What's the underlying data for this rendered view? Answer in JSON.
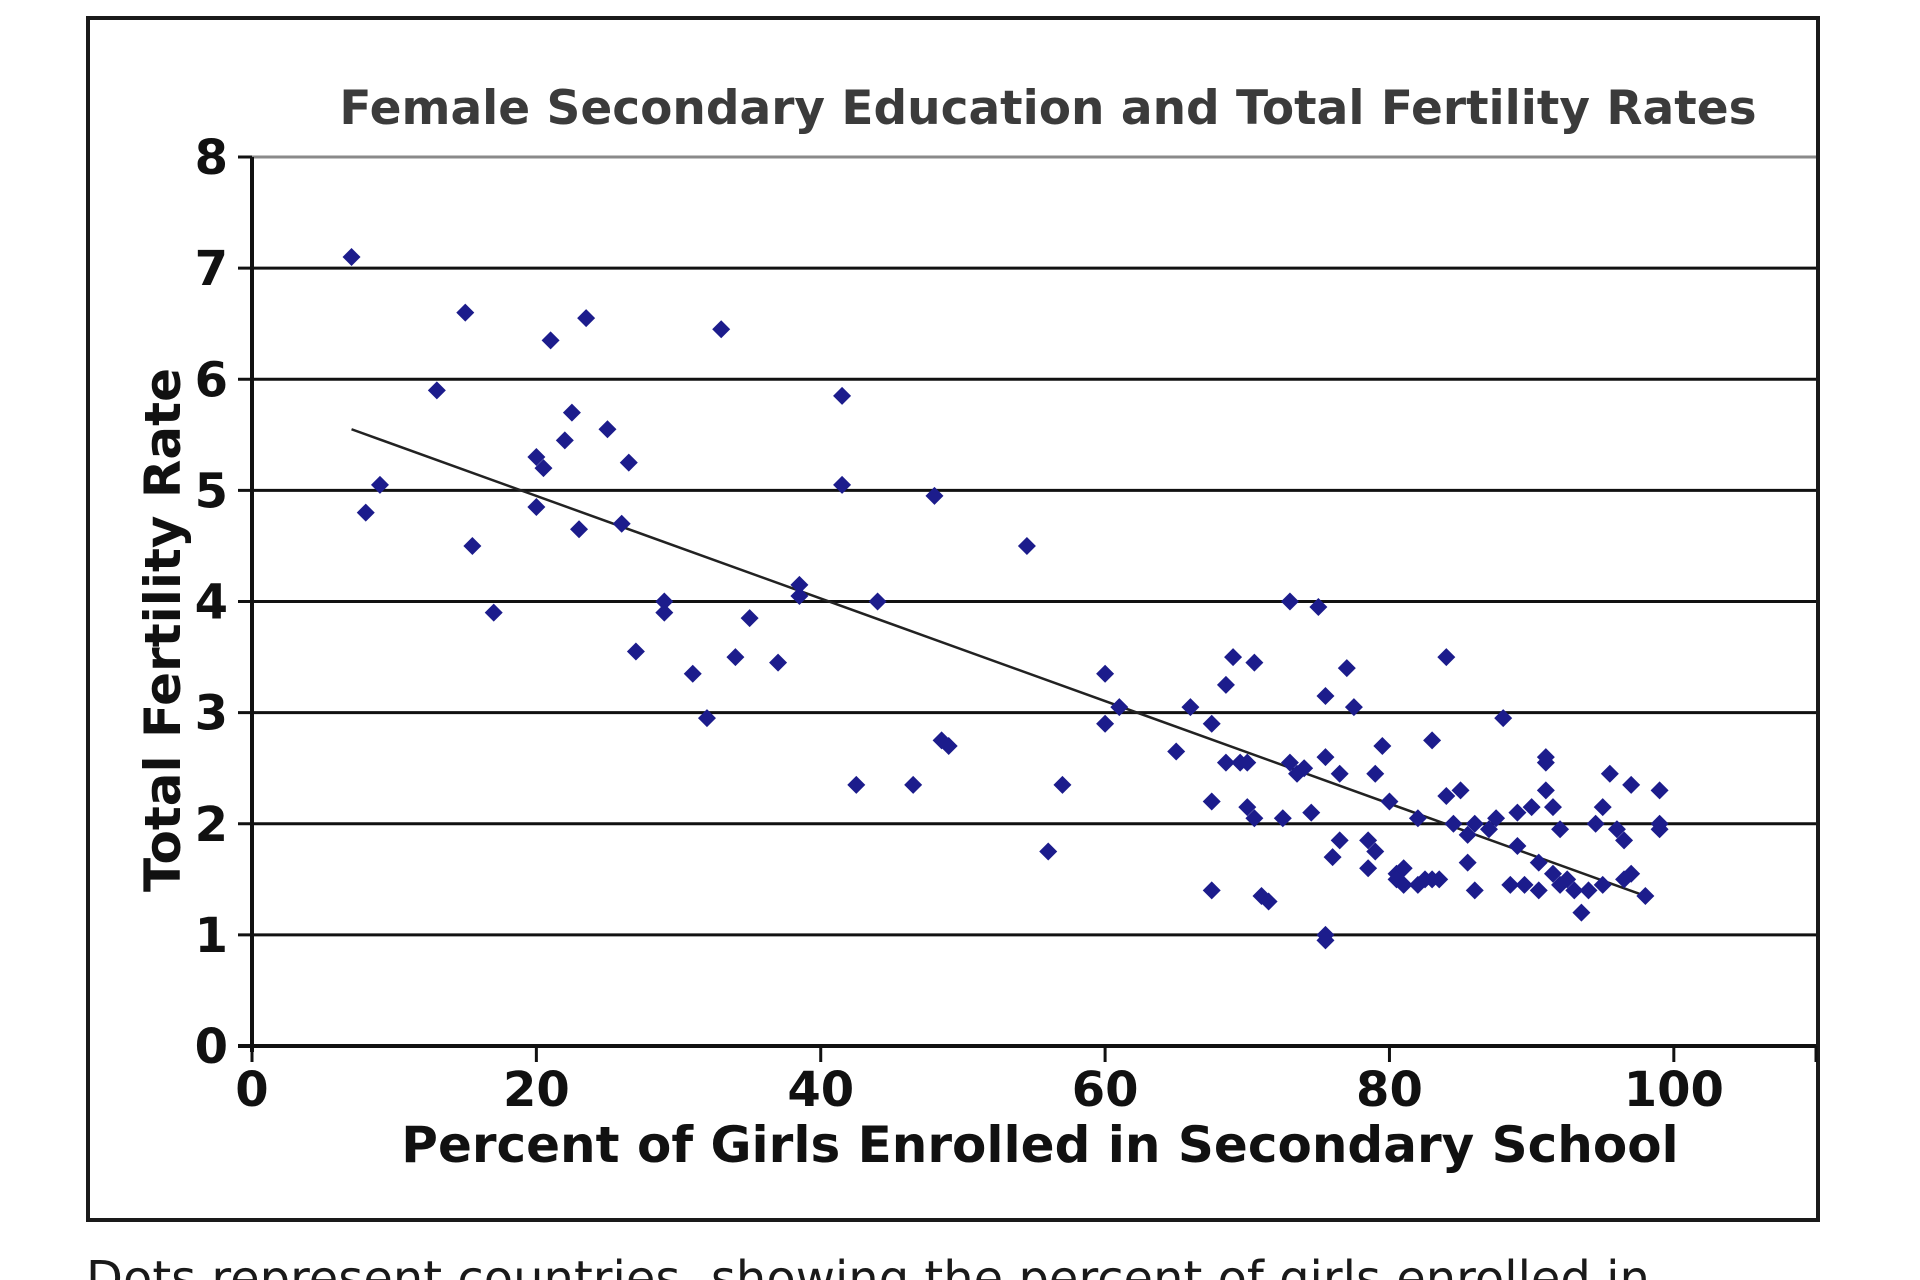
{
  "chart_data": {
    "type": "scatter",
    "title": "Female Secondary Education and Total Fertility Rates",
    "xlabel": "Percent of Girls Enrolled in Secondary School",
    "ylabel": "Total Fertility Rate",
    "xlim": [
      0,
      110
    ],
    "ylim": [
      0,
      8
    ],
    "xticks": [
      0,
      20,
      40,
      60,
      80,
      100
    ],
    "yticks": [
      0,
      1,
      2,
      3,
      4,
      5,
      6,
      7,
      8
    ],
    "grid": "horizontal",
    "legend": "none",
    "marker_color": "#1c1c8c",
    "trendline": {
      "x": [
        7,
        98
      ],
      "y": [
        5.55,
        1.35
      ],
      "color": "#222222"
    },
    "points": [
      [
        7,
        7.1
      ],
      [
        8,
        4.8
      ],
      [
        9,
        5.05
      ],
      [
        13,
        5.9
      ],
      [
        15,
        6.6
      ],
      [
        15.5,
        4.5
      ],
      [
        17,
        3.9
      ],
      [
        20,
        4.85
      ],
      [
        20,
        5.3
      ],
      [
        20.5,
        5.2
      ],
      [
        21,
        6.35
      ],
      [
        22,
        5.45
      ],
      [
        22.5,
        5.7
      ],
      [
        23,
        4.65
      ],
      [
        23.5,
        6.55
      ],
      [
        25,
        5.55
      ],
      [
        26,
        4.7
      ],
      [
        26.5,
        5.25
      ],
      [
        27,
        3.55
      ],
      [
        29,
        3.9
      ],
      [
        29,
        4.0
      ],
      [
        31,
        3.35
      ],
      [
        32,
        2.95
      ],
      [
        33,
        6.45
      ],
      [
        34,
        3.5
      ],
      [
        35,
        3.85
      ],
      [
        37,
        3.45
      ],
      [
        38.5,
        4.05
      ],
      [
        38.5,
        4.15
      ],
      [
        41.5,
        5.05
      ],
      [
        41.5,
        5.85
      ],
      [
        42.5,
        2.35
      ],
      [
        44,
        4.0
      ],
      [
        46.5,
        2.35
      ],
      [
        48,
        4.95
      ],
      [
        48.5,
        2.75
      ],
      [
        49,
        2.7
      ],
      [
        54.5,
        4.5
      ],
      [
        56,
        1.75
      ],
      [
        57,
        2.35
      ],
      [
        60,
        3.35
      ],
      [
        60,
        2.9
      ],
      [
        61,
        3.05
      ],
      [
        65,
        2.65
      ],
      [
        66,
        3.05
      ],
      [
        67.5,
        2.9
      ],
      [
        67.5,
        1.4
      ],
      [
        67.5,
        2.2
      ],
      [
        68.5,
        3.25
      ],
      [
        68.5,
        2.55
      ],
      [
        69,
        3.5
      ],
      [
        69.5,
        2.55
      ],
      [
        70,
        2.55
      ],
      [
        70,
        2.15
      ],
      [
        70.5,
        2.05
      ],
      [
        70.5,
        3.45
      ],
      [
        71,
        1.35
      ],
      [
        71.5,
        1.3
      ],
      [
        72.5,
        2.05
      ],
      [
        73,
        2.55
      ],
      [
        73,
        4.0
      ],
      [
        73.5,
        2.45
      ],
      [
        74,
        2.5
      ],
      [
        74.5,
        2.1
      ],
      [
        75,
        3.95
      ],
      [
        75.5,
        2.6
      ],
      [
        75.5,
        3.15
      ],
      [
        75.5,
        1.0
      ],
      [
        75.5,
        0.95
      ],
      [
        76,
        1.7
      ],
      [
        76.5,
        1.85
      ],
      [
        76.5,
        2.45
      ],
      [
        77,
        3.4
      ],
      [
        77.5,
        3.05
      ],
      [
        78.5,
        1.85
      ],
      [
        78.5,
        1.6
      ],
      [
        79,
        2.45
      ],
      [
        79,
        1.75
      ],
      [
        79.5,
        2.7
      ],
      [
        80,
        2.2
      ],
      [
        80.5,
        1.55
      ],
      [
        80.5,
        1.5
      ],
      [
        81,
        1.45
      ],
      [
        81,
        1.6
      ],
      [
        82,
        2.05
      ],
      [
        82,
        1.45
      ],
      [
        82.5,
        1.5
      ],
      [
        83,
        2.75
      ],
      [
        83,
        1.5
      ],
      [
        83.5,
        1.5
      ],
      [
        84,
        2.25
      ],
      [
        84,
        3.5
      ],
      [
        84.5,
        2.0
      ],
      [
        85,
        2.3
      ],
      [
        85.5,
        1.9
      ],
      [
        85.5,
        1.65
      ],
      [
        86,
        1.4
      ],
      [
        86,
        2.0
      ],
      [
        87,
        1.95
      ],
      [
        87.5,
        2.05
      ],
      [
        88,
        2.95
      ],
      [
        88.5,
        1.45
      ],
      [
        89,
        1.8
      ],
      [
        89,
        2.1
      ],
      [
        89.5,
        1.45
      ],
      [
        90,
        2.15
      ],
      [
        90.5,
        1.65
      ],
      [
        90.5,
        1.4
      ],
      [
        91,
        2.6
      ],
      [
        91,
        2.55
      ],
      [
        91,
        2.3
      ],
      [
        91.5,
        2.15
      ],
      [
        91.5,
        1.55
      ],
      [
        92,
        1.45
      ],
      [
        92,
        1.95
      ],
      [
        92.5,
        1.5
      ],
      [
        93,
        1.4
      ],
      [
        93.5,
        1.2
      ],
      [
        94,
        1.4
      ],
      [
        94.5,
        2.0
      ],
      [
        95,
        1.45
      ],
      [
        95,
        2.15
      ],
      [
        95.5,
        2.45
      ],
      [
        96,
        1.95
      ],
      [
        96.5,
        1.5
      ],
      [
        96.5,
        1.85
      ],
      [
        97,
        1.55
      ],
      [
        97,
        2.35
      ],
      [
        98,
        1.35
      ],
      [
        99,
        2.3
      ],
      [
        99,
        1.95
      ],
      [
        99,
        2.0
      ]
    ]
  },
  "caption": "Dots represent countries, showing the percent of girls enrolled in"
}
